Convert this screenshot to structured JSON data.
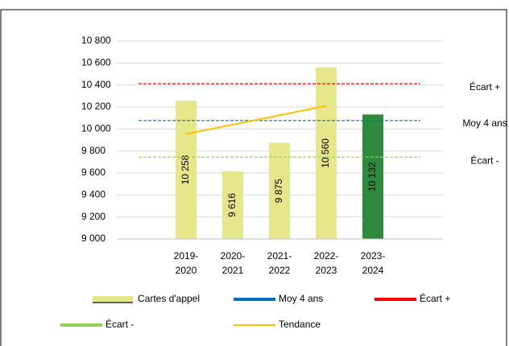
{
  "chart_data": {
    "type": "bar",
    "categories": [
      [
        "2019-",
        "2020"
      ],
      [
        "2020-",
        "2021"
      ],
      [
        "2021-",
        "2022"
      ],
      [
        "2022-",
        "2023"
      ],
      [
        "2023-",
        "2024"
      ]
    ],
    "series": [
      {
        "name": "Cartes d'appel",
        "type": "bar",
        "colors": [
          "#e6e68a",
          "#e6e68a",
          "#e6e68a",
          "#e6e68a",
          "#2e8b3e"
        ],
        "values": [
          10258,
          9616,
          9875,
          10560,
          10132
        ],
        "value_labels": [
          "10 258",
          "9 616",
          "9 875",
          "10 560",
          "10 132"
        ]
      },
      {
        "name": "Moy 4 ans",
        "type": "hline",
        "color": "#0070c0",
        "value": 10077
      },
      {
        "name": "Écart +",
        "type": "hline",
        "color": "#ff0000",
        "value": 10412
      },
      {
        "name": "Écart -",
        "type": "hline",
        "color": "#92d050",
        "value": 9745
      },
      {
        "name": "Tendance",
        "type": "line",
        "color": "#ffc000",
        "values": [
          9955,
          10040,
          10125,
          10210,
          null
        ]
      }
    ],
    "ylim": [
      9000,
      10800
    ],
    "yticks": [
      {
        "value": 9000,
        "label": "9 000"
      },
      {
        "value": 9200,
        "label": "9 200"
      },
      {
        "value": 9400,
        "label": "9 400"
      },
      {
        "value": 9600,
        "label": "9 600"
      },
      {
        "value": 9800,
        "label": "9 800"
      },
      {
        "value": 10000,
        "label": "10 000"
      },
      {
        "value": 10200,
        "label": "10 200"
      },
      {
        "value": 10400,
        "label": "10 400"
      },
      {
        "value": 10600,
        "label": "10 600"
      },
      {
        "value": 10800,
        "label": "10 800"
      }
    ],
    "grid": true
  }
}
